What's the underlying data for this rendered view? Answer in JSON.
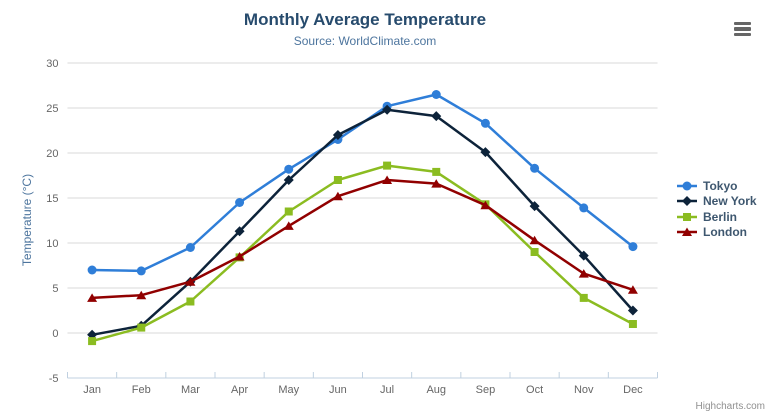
{
  "credit": "Highcharts.com",
  "colors": {
    "title": "#274b6d",
    "subtitle": "#4d759e",
    "axis_title": "#4d759e",
    "tick_label": "#666666",
    "grid_line": "#d8d8d8",
    "axis_line": "#c0d0e0",
    "legend_text": "#3e576f",
    "credit": "#909090",
    "menu_icon": "#666666"
  },
  "chart_data": {
    "type": "line",
    "title": "Monthly Average Temperature",
    "subtitle": "Source: WorldClimate.com",
    "xlabel": "",
    "ylabel": "Temperature (°C)",
    "categories": [
      "Jan",
      "Feb",
      "Mar",
      "Apr",
      "May",
      "Jun",
      "Jul",
      "Aug",
      "Sep",
      "Oct",
      "Nov",
      "Dec"
    ],
    "ylim": [
      -5,
      30
    ],
    "ytick_step": 5,
    "grid": true,
    "legend_position": "right",
    "series": [
      {
        "name": "Tokyo",
        "color": "#2f7ed8",
        "marker": "circle",
        "values": [
          7.0,
          6.9,
          9.5,
          14.5,
          18.2,
          21.5,
          25.2,
          26.5,
          23.3,
          18.3,
          13.9,
          9.6
        ]
      },
      {
        "name": "New York",
        "color": "#0d233a",
        "marker": "diamond",
        "values": [
          -0.2,
          0.8,
          5.7,
          11.3,
          17.0,
          22.0,
          24.8,
          24.1,
          20.1,
          14.1,
          8.6,
          2.5
        ]
      },
      {
        "name": "Berlin",
        "color": "#8bbc21",
        "marker": "square",
        "values": [
          -0.9,
          0.6,
          3.5,
          8.4,
          13.5,
          17.0,
          18.6,
          17.9,
          14.3,
          9.0,
          3.9,
          1.0
        ]
      },
      {
        "name": "London",
        "color": "#910000",
        "marker": "triangle",
        "values": [
          3.9,
          4.2,
          5.7,
          8.5,
          11.9,
          15.2,
          17.0,
          16.6,
          14.2,
          10.3,
          6.6,
          4.8
        ]
      }
    ]
  }
}
